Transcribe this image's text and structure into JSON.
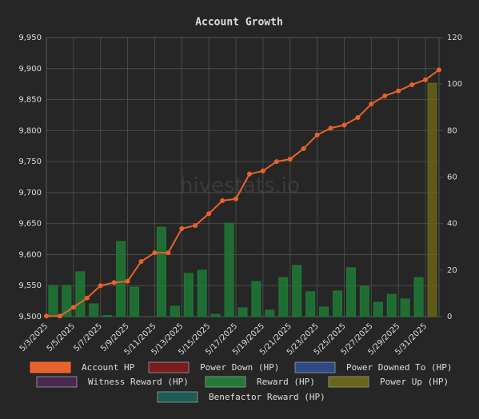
{
  "chart_data": {
    "type": "bar-line",
    "title": "Account Growth",
    "watermark": "hivestats.io",
    "categories": [
      "5/3/2025",
      null,
      "5/5/2025",
      null,
      "5/7/2025",
      null,
      "5/9/2025",
      null,
      "5/11/2025",
      null,
      "5/13/2025",
      null,
      "5/15/2025",
      null,
      "5/17/2025",
      null,
      "5/19/2025",
      null,
      "5/21/2025",
      null,
      "5/23/2025",
      null,
      "5/25/2025",
      null,
      "5/27/2025",
      null,
      "5/29/2025",
      null,
      "5/31/2025",
      null
    ],
    "series": [
      {
        "name": "Account HP",
        "color": "#e8622c",
        "kind": "line",
        "axis": "y",
        "values": [
          9501,
          9501,
          9515,
          9530,
          9550,
          9555,
          9557,
          9589,
          9603,
          9603,
          9642,
          9647,
          9666,
          9687,
          9690,
          9730,
          9735,
          9750,
          9754,
          9771,
          9793,
          9804,
          9809,
          9821,
          9843,
          9856,
          9864,
          9874,
          9882,
          9898
        ]
      },
      {
        "name": "Power Down (HP)",
        "color": "#7a1c1c",
        "kind": "bar",
        "axis": "y2"
      },
      {
        "name": "Power Downed To (HP)",
        "color": "#2d4a86",
        "kind": "bar",
        "axis": "y2"
      },
      {
        "name": "Witness Reward (HP)",
        "color": "#4a2852",
        "kind": "bar",
        "axis": "y2"
      },
      {
        "name": "Reward (HP)",
        "color": "#1f7a36",
        "kind": "bar",
        "axis": "y2",
        "values": [
          0,
          13.4,
          13.4,
          19.3,
          5.5,
          0.5,
          32.3,
          12.7,
          0,
          38.5,
          4.5,
          18.6,
          20,
          1,
          40.2,
          3.8,
          15.1,
          2.8,
          16.8,
          22,
          10.7,
          4.1,
          11,
          21,
          13.1,
          6.2,
          9.6,
          7.6,
          16.8,
          0
        ]
      },
      {
        "name": "Power Up (HP)",
        "color": "#6b6418",
        "kind": "bar",
        "axis": "y2",
        "values": [
          0,
          0,
          0,
          0,
          0,
          0,
          0,
          0,
          0,
          0,
          0,
          0,
          0,
          0,
          0,
          0,
          0,
          0,
          0,
          0,
          0,
          0,
          0,
          0,
          0,
          0,
          0,
          0,
          0,
          100.4
        ]
      },
      {
        "name": "Benefactor Reward (HP)",
        "color": "#1d5c55",
        "kind": "bar",
        "axis": "y2"
      }
    ],
    "ylim": [
      9500,
      9950
    ],
    "yticks": [
      {
        "value": 9500,
        "label": "9,500"
      },
      {
        "value": 9550,
        "label": "9,550"
      },
      {
        "value": 9600,
        "label": "9,600"
      },
      {
        "value": 9650,
        "label": "9,650"
      },
      {
        "value": 9700,
        "label": "9,700"
      },
      {
        "value": 9750,
        "label": "9,750"
      },
      {
        "value": 9800,
        "label": "9,800"
      },
      {
        "value": 9850,
        "label": "9,850"
      },
      {
        "value": 9900,
        "label": "9,900"
      },
      {
        "value": 9950,
        "label": "9,950"
      }
    ],
    "y2lim": [
      0,
      120
    ],
    "y2ticks": [
      0,
      20,
      40,
      60,
      80,
      100,
      120
    ],
    "grid": true,
    "legend": "bottom"
  }
}
